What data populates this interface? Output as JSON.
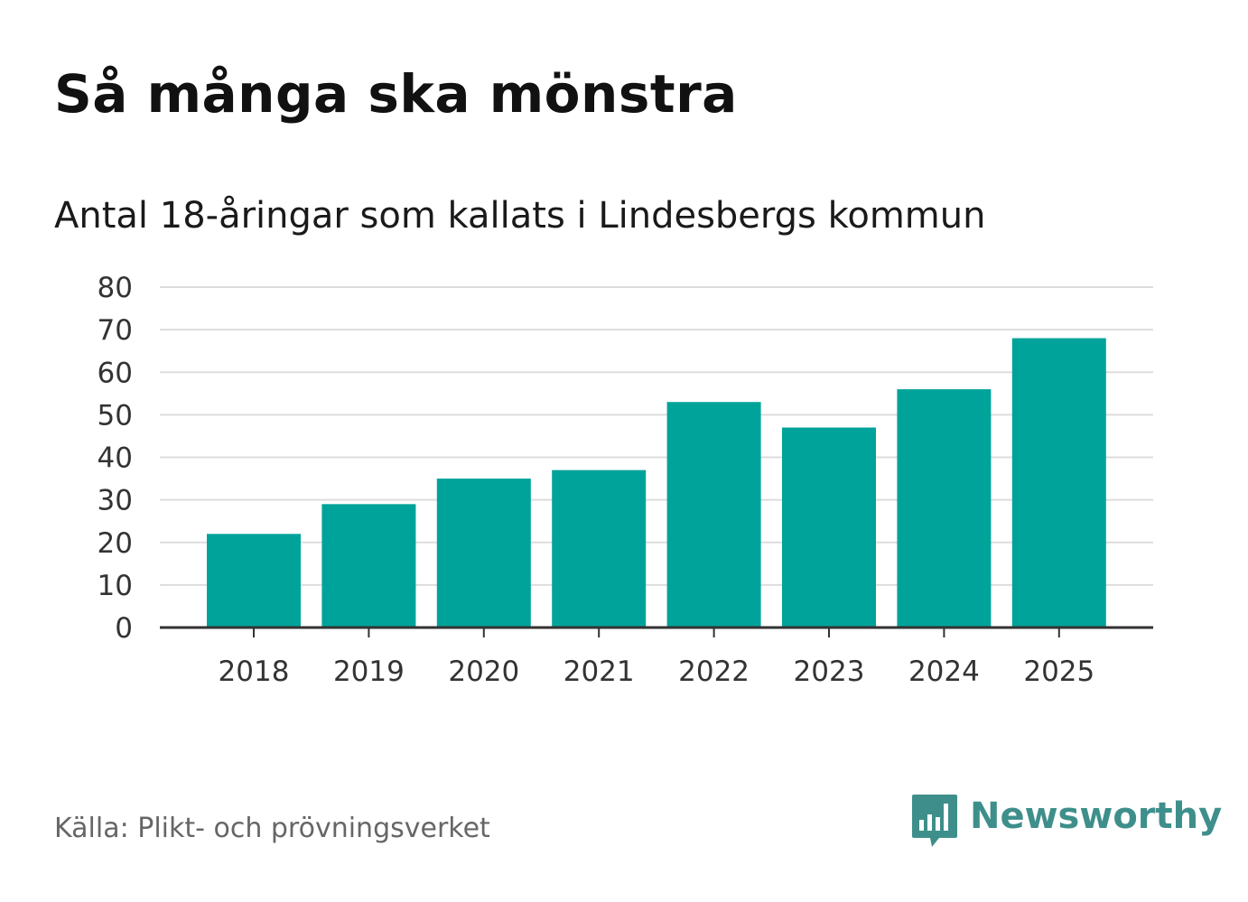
{
  "header": {
    "title": "Så många ska mönstra",
    "subtitle": "Antal 18-åringar som kallats i Lindesbergs kommun"
  },
  "footer": {
    "source": "Källa: Plikt- och prövningsverket",
    "brand": "Newsworthy",
    "brand_icon": "speech-bubble-bar-chart-icon"
  },
  "colors": {
    "bar": "#00A39A",
    "grid": "#DDDDDD",
    "axis": "#333333",
    "brand": "#3E8F8B"
  },
  "chart_data": {
    "type": "bar",
    "title": "Så många ska mönstra",
    "subtitle": "Antal 18-åringar som kallats i Lindesbergs kommun",
    "categories": [
      "2018",
      "2019",
      "2020",
      "2021",
      "2022",
      "2023",
      "2024",
      "2025"
    ],
    "values": [
      22,
      29,
      35,
      37,
      53,
      47,
      56,
      68
    ],
    "yticks": [
      "0",
      "10",
      "20",
      "30",
      "40",
      "50",
      "60",
      "70",
      "80"
    ],
    "ylim": [
      0,
      80
    ],
    "xlabel": "",
    "ylabel": "",
    "grid": true,
    "legend": "none"
  }
}
